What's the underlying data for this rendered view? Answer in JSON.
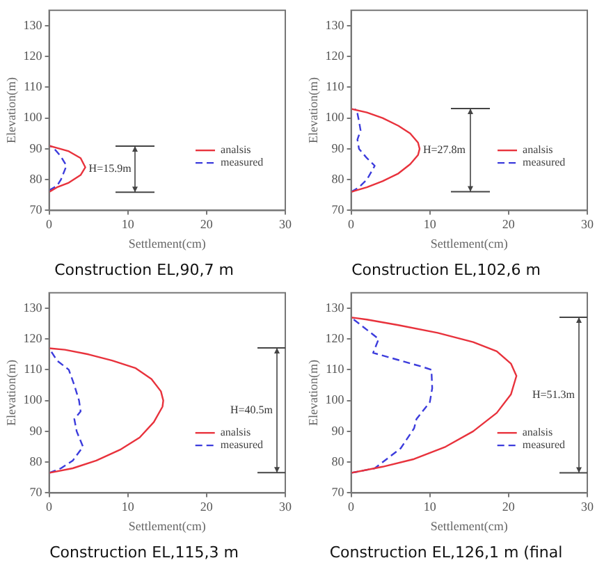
{
  "chart_data": [
    {
      "type": "line",
      "title": "Construction EL,90,7 m",
      "xlabel": "Settlement(cm)",
      "ylabel": "Elevation(m)",
      "xlim": [
        0,
        30
      ],
      "ylim": [
        70,
        135
      ],
      "xticks": [
        0,
        10,
        20,
        30
      ],
      "yticks": [
        70,
        80,
        90,
        100,
        110,
        120,
        130
      ],
      "legend": "right",
      "marker": "none",
      "annotations": [
        "H=15.9m"
      ],
      "series": [
        {
          "name": "analsis",
          "color": "#e8323c",
          "line_style": "solid",
          "x": [
            0,
            1,
            2.5,
            4,
            4.6,
            4,
            2.5,
            1,
            0
          ],
          "values": [
            76,
            77.5,
            79,
            81.5,
            84,
            87,
            89.2,
            90.3,
            91
          ]
        },
        {
          "name": "measured",
          "color": "#3c3cdc",
          "line_style": "dashed",
          "x": [
            0,
            1,
            1.5,
            2.2,
            1.5,
            1,
            0.5,
            0
          ],
          "values": [
            76.5,
            78,
            80,
            84.5,
            87.5,
            89,
            90.5,
            91
          ]
        }
      ]
    },
    {
      "type": "line",
      "title": "Construction EL,102,6 m",
      "xlabel": "Settlement(cm)",
      "ylabel": "Elevation(m)",
      "xlim": [
        0,
        30
      ],
      "ylim": [
        70,
        135
      ],
      "xticks": [
        0,
        10,
        20,
        30
      ],
      "yticks": [
        70,
        80,
        90,
        100,
        110,
        120,
        130
      ],
      "legend": "right",
      "marker": "none",
      "annotations": [
        "H=27.8m"
      ],
      "series": [
        {
          "name": "analsis",
          "color": "#e8323c",
          "line_style": "solid",
          "x": [
            0,
            2,
            4,
            6,
            7.5,
            8.5,
            8.7,
            8.5,
            7.5,
            6,
            4,
            2,
            0
          ],
          "values": [
            76,
            77.5,
            79.5,
            82,
            85,
            88,
            90,
            92,
            95,
            97.5,
            100,
            101.8,
            103
          ]
        },
        {
          "name": "measured",
          "color": "#3c3cdc",
          "line_style": "dashed",
          "x": [
            0,
            1,
            2,
            3,
            2,
            1,
            0.8,
            1.2,
            1,
            0.8,
            0.5
          ],
          "values": [
            76,
            77.5,
            80,
            84.5,
            87,
            90,
            93,
            96,
            99,
            101.5,
            103
          ]
        }
      ]
    },
    {
      "type": "line",
      "title": "Construction EL,115,3 m",
      "xlabel": "Settlement(cm)",
      "ylabel": "Elevation(m)",
      "xlim": [
        0,
        30
      ],
      "ylim": [
        70,
        135
      ],
      "xticks": [
        0,
        10,
        20,
        30
      ],
      "yticks": [
        70,
        80,
        90,
        100,
        110,
        120,
        130
      ],
      "legend": "right",
      "marker": "none",
      "annotations": [
        "H=40.5m"
      ],
      "series": [
        {
          "name": "analsis",
          "color": "#e8323c",
          "line_style": "solid",
          "x": [
            0,
            3,
            6,
            9,
            11.5,
            13.3,
            14.4,
            14.5,
            14.2,
            13,
            11,
            8,
            5,
            2,
            0
          ],
          "values": [
            76.5,
            78,
            80.5,
            84,
            88,
            93,
            98,
            100,
            103,
            107,
            110.5,
            113,
            115,
            116.5,
            117
          ]
        },
        {
          "name": "measured",
          "color": "#3c3cdc",
          "line_style": "dashed",
          "x": [
            0,
            1.5,
            3,
            4.3,
            3.5,
            3.2,
            4,
            3.8,
            3.2,
            2.5,
            1,
            0
          ],
          "values": [
            76.5,
            78,
            80.5,
            85,
            90,
            94,
            96.5,
            100,
            105,
            110,
            113,
            117
          ]
        }
      ]
    },
    {
      "type": "line",
      "title": "Construction EL,126,1 m (final",
      "xlabel": "Settlement(cm)",
      "ylabel": "Elevation(m)",
      "xlim": [
        0,
        30
      ],
      "ylim": [
        70,
        135
      ],
      "xticks": [
        0,
        10,
        20,
        30
      ],
      "yticks": [
        70,
        80,
        90,
        100,
        110,
        120,
        130
      ],
      "legend": "right",
      "marker": "none",
      "annotations": [
        "H=51.3m"
      ],
      "series": [
        {
          "name": "analsis",
          "color": "#e8323c",
          "line_style": "solid",
          "x": [
            0,
            4,
            8,
            12,
            15.5,
            18.5,
            20.3,
            21,
            20.3,
            18.5,
            15.5,
            11,
            6,
            2,
            0
          ],
          "values": [
            76.5,
            78.5,
            81,
            85,
            90,
            96,
            102,
            108,
            112,
            116,
            119,
            122,
            124.5,
            126.3,
            127
          ]
        },
        {
          "name": "measured",
          "color": "#3c3cdc",
          "line_style": "dashed",
          "x": [
            0,
            3,
            6.3,
            8,
            8.3,
            10,
            10.3,
            10.2,
            9,
            2.8,
            3.5,
            1,
            0
          ],
          "values": [
            76.5,
            78,
            84.5,
            91,
            94,
            99.5,
            104,
            110,
            111,
            115.5,
            120,
            125,
            127
          ]
        }
      ]
    }
  ]
}
